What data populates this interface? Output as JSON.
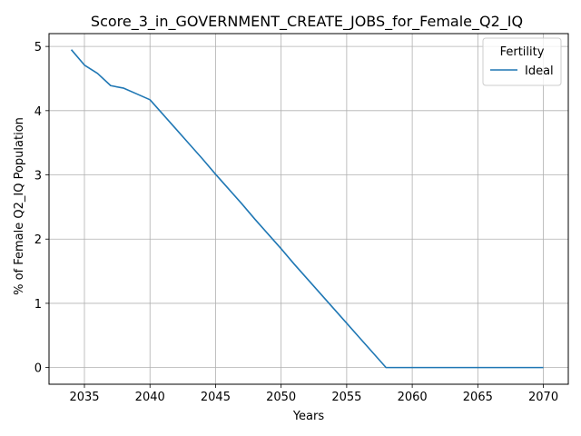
{
  "chart_data": {
    "type": "line",
    "title": "Score_3_in_GOVERNMENT_CREATE_JOBS_for_Female_Q2_IQ",
    "xlabel": "Years",
    "ylabel": "% of Female Q2_IQ Population",
    "xlim": [
      2032.3,
      2071.9
    ],
    "ylim": [
      -0.26,
      5.2
    ],
    "xticks": [
      2035,
      2040,
      2045,
      2050,
      2055,
      2060,
      2065,
      2070
    ],
    "yticks": [
      0,
      1,
      2,
      3,
      4,
      5
    ],
    "grid": true,
    "legend": {
      "title": "Fertility",
      "placement": "top-right"
    },
    "series": [
      {
        "name": "Ideal",
        "color": "#1f77b4",
        "x": [
          2034,
          2035,
          2036,
          2037,
          2038,
          2039,
          2040,
          2041,
          2042,
          2043,
          2044,
          2045,
          2046,
          2047,
          2048,
          2049,
          2050,
          2051,
          2052,
          2053,
          2054,
          2055,
          2056,
          2057,
          2058,
          2059,
          2060,
          2061,
          2062,
          2063,
          2064,
          2065,
          2066,
          2067,
          2068,
          2069,
          2070
        ],
        "y": [
          4.95,
          4.71,
          4.58,
          4.39,
          4.35,
          4.26,
          4.17,
          3.94,
          3.71,
          3.48,
          3.25,
          3.01,
          2.78,
          2.55,
          2.31,
          2.08,
          1.85,
          1.61,
          1.38,
          1.15,
          0.92,
          0.69,
          0.46,
          0.23,
          0.0,
          0.0,
          0.0,
          0.0,
          0.0,
          0.0,
          0.0,
          0.0,
          0.0,
          0.0,
          0.0,
          0.0,
          0.0
        ]
      }
    ]
  }
}
